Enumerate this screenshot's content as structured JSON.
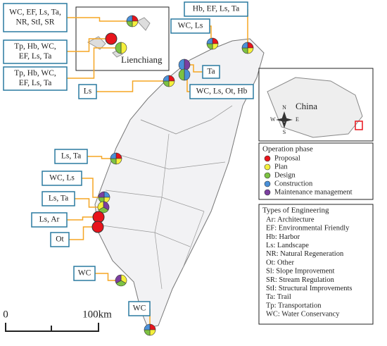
{
  "map": {
    "inset_lienchiang": "Lienchiang",
    "inset_china": "China",
    "compass": {
      "n": "N",
      "s": "S",
      "e": "E",
      "w": "W"
    },
    "scale": {
      "start": "0",
      "end": "100km"
    },
    "callouts": [
      {
        "lines": [
          "WC, EF, Ls, Ta,",
          "NR, StI, SR"
        ]
      },
      {
        "lines": [
          "Tp, Hb, WC,",
          "EF, Ls, Ta"
        ]
      },
      {
        "lines": [
          "Tp, Hb, WC,",
          "EF, Ls, Ta"
        ]
      },
      {
        "lines": [
          "Hb, EF, Ls, Ta"
        ]
      },
      {
        "lines": [
          "WC, Ls"
        ]
      },
      {
        "lines": [
          "Ta"
        ]
      },
      {
        "lines": [
          "Ls"
        ]
      },
      {
        "lines": [
          "WC, Ls, Ot, Hb"
        ]
      },
      {
        "lines": [
          "Ls, Ta"
        ]
      },
      {
        "lines": [
          "WC, Ls"
        ]
      },
      {
        "lines": [
          "Ls, Ta"
        ]
      },
      {
        "lines": [
          "Ls, Ar"
        ]
      },
      {
        "lines": [
          "Ot"
        ]
      },
      {
        "lines": [
          "WC"
        ]
      },
      {
        "lines": [
          "WC"
        ]
      }
    ],
    "phase_legend": {
      "title": "Operation phase",
      "items": [
        {
          "name": "Proposal",
          "color": "#e8141c"
        },
        {
          "name": "Plan",
          "color": "#f5f03c"
        },
        {
          "name": "Design",
          "color": "#7dc242"
        },
        {
          "name": "Construction",
          "color": "#4a90d9"
        },
        {
          "name": "Maintenance management",
          "color": "#7b3fa0"
        }
      ]
    },
    "types_legend": {
      "title": "Types of Engineering",
      "items": [
        "Ar: Architecture",
        "EF: Environmental Friendly",
        "Hb: Harbor",
        "Ls: Landscape",
        "NR: Natural Regeneration",
        "Ot: Other",
        "Sl: Slope Improvement",
        "SR: Stream Regulation",
        "StI: Structural Improvements",
        "Ta: Trail",
        "Tp: Transportation",
        "WC: Water Conservancy"
      ]
    }
  }
}
